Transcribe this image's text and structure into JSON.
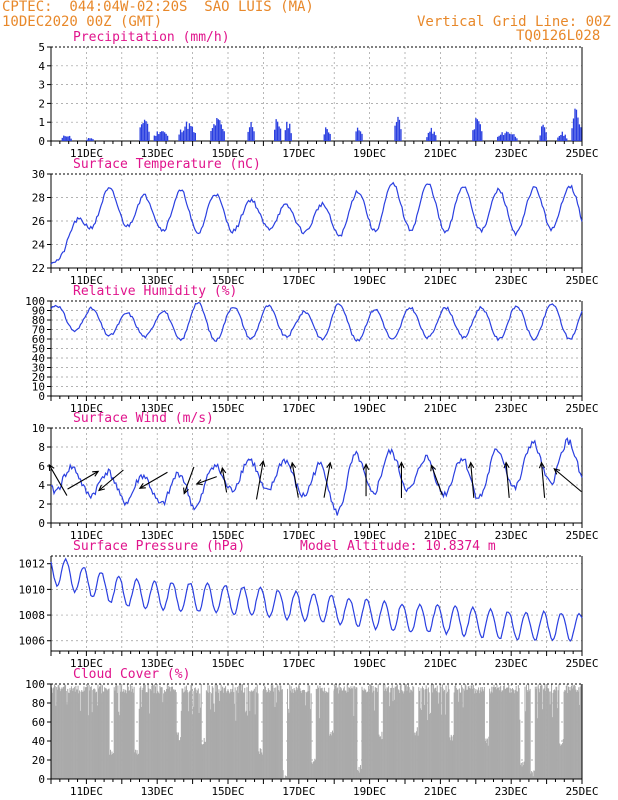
{
  "header": {
    "line1": "CPTEC:  044:04W-02:20S  SAO LUIS (MA)",
    "line2": "10DEC2020 00Z (GMT)",
    "grid_note": "Vertical Grid Line: 00Z",
    "code": "TQ0126L028"
  },
  "colors": {
    "header": "#e8882a",
    "title": "#e0148c",
    "line": "#2a3fe0",
    "cloud": "#aaaaaa",
    "arrow": "#000000",
    "grid": "#999999"
  },
  "chart_data": [
    {
      "type": "bar",
      "title": "Precipitation (mm/h)",
      "x_start_day": 10,
      "x_end_day": 25,
      "x_ticks": [
        "11DEC",
        "13DEC",
        "15DEC",
        "17DEC",
        "19DEC",
        "21DEC",
        "23DEC",
        "25DEC"
      ],
      "ylim": [
        0,
        5
      ],
      "y_ticks": [
        0,
        1,
        2,
        3,
        4,
        5
      ],
      "bursts": [
        {
          "day": 10.3,
          "dur": 0.3,
          "peak": 0.4
        },
        {
          "day": 11.0,
          "dur": 0.2,
          "peak": 0.2
        },
        {
          "day": 12.5,
          "dur": 0.3,
          "peak": 1.5
        },
        {
          "day": 12.9,
          "dur": 0.4,
          "peak": 0.7
        },
        {
          "day": 13.6,
          "dur": 0.5,
          "peak": 1.1
        },
        {
          "day": 14.5,
          "dur": 0.4,
          "peak": 1.3
        },
        {
          "day": 15.55,
          "dur": 0.2,
          "peak": 1.3
        },
        {
          "day": 16.3,
          "dur": 0.2,
          "peak": 1.4
        },
        {
          "day": 16.6,
          "dur": 0.2,
          "peak": 1.2
        },
        {
          "day": 17.7,
          "dur": 0.2,
          "peak": 0.9
        },
        {
          "day": 18.6,
          "dur": 0.2,
          "peak": 1.0
        },
        {
          "day": 19.7,
          "dur": 0.2,
          "peak": 1.5
        },
        {
          "day": 20.6,
          "dur": 0.3,
          "peak": 0.7
        },
        {
          "day": 21.9,
          "dur": 0.3,
          "peak": 1.4
        },
        {
          "day": 22.6,
          "dur": 0.6,
          "peak": 0.6
        },
        {
          "day": 23.8,
          "dur": 0.2,
          "peak": 0.9
        },
        {
          "day": 24.3,
          "dur": 0.3,
          "peak": 0.5
        },
        {
          "day": 24.7,
          "dur": 0.3,
          "peak": 1.9
        }
      ]
    },
    {
      "type": "line",
      "title": "Surface Temperature (nC)",
      "x_start_day": 10,
      "x_end_day": 25,
      "x_ticks": [
        "11DEC",
        "13DEC",
        "15DEC",
        "17DEC",
        "19DEC",
        "21DEC",
        "23DEC",
        "25DEC"
      ],
      "ylim": [
        22,
        30
      ],
      "y_ticks": [
        22,
        24,
        26,
        28,
        30
      ],
      "base": 26.6,
      "amp": 1.7,
      "phase_day": 0.65,
      "start_value": 22.5,
      "ramp_days": 1.2,
      "day_max": [
        27.8,
        28.9,
        28.6,
        27.9,
        28.9,
        28.0,
        27.7,
        27.1,
        27.6,
        29.0,
        29.2,
        29.1,
        28.9,
        28.5,
        29.0
      ],
      "day_min": [
        23.0,
        25.6,
        25.6,
        25.3,
        24.9,
        25.1,
        25.4,
        25.1,
        24.7,
        25.1,
        25.3,
        25.0,
        25.2,
        24.9,
        25.3
      ]
    },
    {
      "type": "line",
      "title": "Relative Humidity (%)",
      "x_start_day": 10,
      "x_end_day": 25,
      "x_ticks": [
        "11DEC",
        "13DEC",
        "15DEC",
        "17DEC",
        "19DEC",
        "21DEC",
        "23DEC",
        "25DEC"
      ],
      "ylim": [
        0,
        100
      ],
      "y_ticks": [
        0,
        10,
        20,
        30,
        40,
        50,
        60,
        70,
        80,
        90,
        100
      ],
      "day_max": [
        96,
        93,
        87,
        88,
        99,
        94,
        96,
        87,
        98,
        91,
        93,
        93,
        93,
        94,
        97
      ],
      "day_min": [
        77,
        64,
        63,
        62,
        57,
        59,
        61,
        63,
        58,
        58,
        60,
        62,
        61,
        59,
        60
      ],
      "phase_day": 0.15
    },
    {
      "type": "line",
      "title": "Surface Wind (m/s)",
      "x_start_day": 10,
      "x_end_day": 25,
      "x_ticks": [
        "11DEC",
        "13DEC",
        "15DEC",
        "17DEC",
        "19DEC",
        "21DEC",
        "23DEC",
        "25DEC"
      ],
      "ylim": [
        0,
        10
      ],
      "y_ticks": [
        0,
        2,
        4,
        6,
        8,
        10
      ],
      "day_max": [
        6.4,
        5.5,
        5.3,
        4.8,
        5.5,
        6.5,
        6.8,
        6.5,
        5.9,
        7.9,
        7.2,
        6.7,
        6.9,
        8.2,
        8.6
      ],
      "day_min": [
        3.4,
        3.0,
        2.2,
        2.0,
        1.4,
        3.5,
        3.3,
        3.1,
        0.9,
        3.0,
        3.5,
        3.1,
        2.6,
        3.6,
        4.2
      ],
      "phase_day": 0.6,
      "arrows_at_value": 4.5,
      "arrows": [
        {
          "day": 10.2,
          "dir": 120,
          "len": 1.0
        },
        {
          "day": 10.9,
          "dir": 30,
          "len": 1.0
        },
        {
          "day": 11.7,
          "dir": 220,
          "len": 0.9
        },
        {
          "day": 12.9,
          "dir": 210,
          "len": 0.9
        },
        {
          "day": 13.9,
          "dir": 250,
          "len": 0.8
        },
        {
          "day": 14.4,
          "dir": 200,
          "len": 0.6
        },
        {
          "day": 14.9,
          "dir": 100,
          "len": 0.7
        },
        {
          "day": 15.9,
          "dir": 80,
          "len": 1.1
        },
        {
          "day": 16.9,
          "dir": 100,
          "len": 1.0
        },
        {
          "day": 17.8,
          "dir": 80,
          "len": 1.0
        },
        {
          "day": 18.9,
          "dir": 90,
          "len": 0.9
        },
        {
          "day": 19.9,
          "dir": 90,
          "len": 1.0
        },
        {
          "day": 20.9,
          "dir": 110,
          "len": 0.9
        },
        {
          "day": 21.9,
          "dir": 95,
          "len": 1.0
        },
        {
          "day": 22.9,
          "dir": 95,
          "len": 1.0
        },
        {
          "day": 23.9,
          "dir": 95,
          "len": 1.0
        },
        {
          "day": 24.6,
          "dir": 140,
          "len": 1.0
        }
      ]
    },
    {
      "type": "line",
      "title": "Surface Pressure (hPa)",
      "subtitle": "Model Altitude: 10.8374 m",
      "x_start_day": 10,
      "x_end_day": 25,
      "x_ticks": [
        "11DEC",
        "13DEC",
        "15DEC",
        "17DEC",
        "19DEC",
        "21DEC",
        "23DEC",
        "25DEC"
      ],
      "ylim": [
        1005.2,
        1012.6
      ],
      "y_ticks": [
        1006,
        1008,
        1010,
        1012
      ],
      "day_mean": [
        1011.6,
        1010.6,
        1009.8,
        1009.5,
        1009.4,
        1009.2,
        1009.0,
        1008.7,
        1008.4,
        1008.1,
        1007.8,
        1007.7,
        1007.4,
        1007.2,
        1007.1
      ],
      "semi_amp": 1.1,
      "phase_day": 0.0
    },
    {
      "type": "area",
      "title": "Cloud Cover (%)",
      "x_start_day": 10,
      "x_end_day": 25,
      "x_ticks": [
        "11DEC",
        "13DEC",
        "15DEC",
        "17DEC",
        "19DEC",
        "21DEC",
        "23DEC",
        "25DEC"
      ],
      "ylim": [
        0,
        100
      ],
      "y_ticks": [
        0,
        20,
        40,
        60,
        80,
        100
      ],
      "typical": 95,
      "dips": [
        {
          "day": 11.7,
          "value": 28
        },
        {
          "day": 12.4,
          "value": 30
        },
        {
          "day": 13.6,
          "value": 45
        },
        {
          "day": 14.3,
          "value": 40
        },
        {
          "day": 15.9,
          "value": 30
        },
        {
          "day": 16.6,
          "value": 5
        },
        {
          "day": 17.4,
          "value": 20
        },
        {
          "day": 17.9,
          "value": 50
        },
        {
          "day": 18.7,
          "value": 10
        },
        {
          "day": 19.3,
          "value": 45
        },
        {
          "day": 20.3,
          "value": 50
        },
        {
          "day": 21.3,
          "value": 45
        },
        {
          "day": 22.3,
          "value": 40
        },
        {
          "day": 23.3,
          "value": 18
        },
        {
          "day": 23.6,
          "value": 4
        },
        {
          "day": 24.4,
          "value": 40
        }
      ]
    }
  ]
}
